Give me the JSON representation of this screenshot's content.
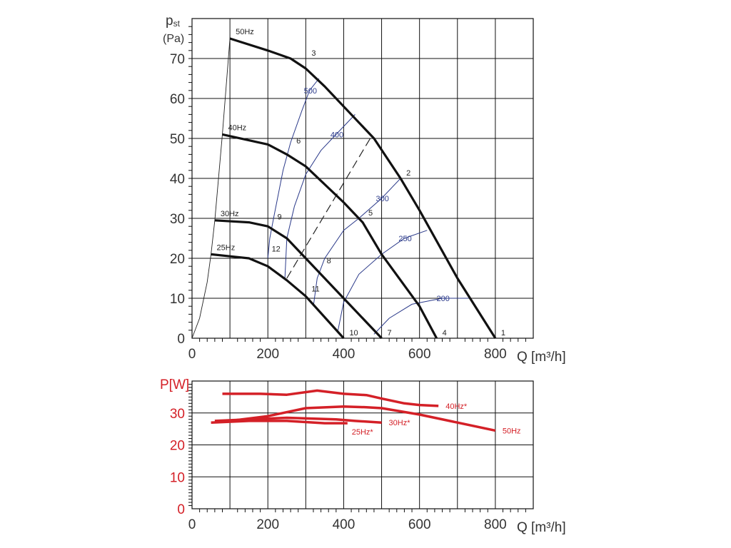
{
  "chart_data": [
    {
      "type": "line",
      "title": "",
      "ylabel_main": "p",
      "ylabel_sub": "st",
      "ylabel_unit": "(Pa)",
      "xlabel": "Q [m³/h]",
      "xlim": [
        0,
        900
      ],
      "ylim": [
        0,
        80
      ],
      "xticks": [
        0,
        200,
        400,
        600,
        800
      ],
      "yticks": [
        0,
        10,
        20,
        30,
        40,
        50,
        60,
        70
      ],
      "grid": true,
      "series": [
        {
          "name": "50Hz",
          "points": [
            [
              100,
              75
            ],
            [
              200,
              72
            ],
            [
              260,
              70
            ],
            [
              300,
              67.5
            ],
            [
              350,
              63
            ],
            [
              400,
              58
            ],
            [
              480,
              50
            ],
            [
              550,
              40
            ],
            [
              600,
              32
            ],
            [
              700,
              15
            ],
            [
              800,
              0
            ]
          ]
        },
        {
          "name": "40Hz",
          "points": [
            [
              80,
              51
            ],
            [
              200,
              48.5
            ],
            [
              250,
              46
            ],
            [
              300,
              43
            ],
            [
              400,
              34
            ],
            [
              450,
              29
            ],
            [
              500,
              21
            ],
            [
              600,
              8
            ],
            [
              645,
              0
            ]
          ]
        },
        {
          "name": "30Hz",
          "points": [
            [
              60,
              29.5
            ],
            [
              150,
              29
            ],
            [
              200,
              28
            ],
            [
              250,
              25
            ],
            [
              300,
              20
            ],
            [
              400,
              10
            ],
            [
              500,
              0
            ]
          ]
        },
        {
          "name": "25Hz",
          "points": [
            [
              50,
              21
            ],
            [
              100,
              20.5
            ],
            [
              150,
              20
            ],
            [
              200,
              18
            ],
            [
              250,
              14.5
            ],
            [
              300,
              10.5
            ],
            [
              400,
              0
            ]
          ]
        }
      ],
      "system_curve": [
        [
          0,
          0
        ],
        [
          20,
          5
        ],
        [
          40,
          14
        ],
        [
          50,
          21
        ],
        [
          60,
          29.5
        ],
        [
          80,
          51
        ],
        [
          100,
          75
        ]
      ],
      "dashed_line": [
        [
          250,
          15
        ],
        [
          470,
          50
        ]
      ],
      "iso_lines": [
        {
          "name": "500",
          "points": [
            [
              200,
              20
            ],
            [
              205,
              25
            ],
            [
              215,
              30
            ],
            [
              240,
              42
            ],
            [
              260,
              49
            ],
            [
              290,
              57
            ],
            [
              310,
              62
            ],
            [
              335,
              65
            ]
          ]
        },
        {
          "name": "400",
          "points": [
            [
              245,
              15
            ],
            [
              250,
              25
            ],
            [
              270,
              33
            ],
            [
              300,
              41
            ],
            [
              340,
              47
            ],
            [
              380,
              51
            ],
            [
              430,
              56
            ]
          ]
        },
        {
          "name": "300",
          "points": [
            [
              320,
              8
            ],
            [
              330,
              15
            ],
            [
              350,
              20
            ],
            [
              400,
              27
            ],
            [
              440,
              30
            ],
            [
              500,
              35
            ],
            [
              550,
              40
            ]
          ]
        },
        {
          "name": "250",
          "points": [
            [
              385,
              2
            ],
            [
              400,
              9
            ],
            [
              440,
              16
            ],
            [
              500,
              21
            ],
            [
              560,
              25
            ],
            [
              620,
              27
            ]
          ]
        },
        {
          "name": "200",
          "points": [
            [
              480,
              1
            ],
            [
              520,
              5
            ],
            [
              580,
              8.5
            ],
            [
              660,
              10
            ],
            [
              730,
              10
            ]
          ]
        }
      ],
      "point_labels": [
        {
          "label": "1",
          "x": 800,
          "y": 0
        },
        {
          "label": "2",
          "x": 550,
          "y": 40
        },
        {
          "label": "3",
          "x": 300,
          "y": 70
        },
        {
          "label": "4",
          "x": 645,
          "y": 0
        },
        {
          "label": "5",
          "x": 450,
          "y": 30
        },
        {
          "label": "6",
          "x": 260,
          "y": 48
        },
        {
          "label": "7",
          "x": 500,
          "y": 0
        },
        {
          "label": "8",
          "x": 340,
          "y": 18
        },
        {
          "label": "9",
          "x": 210,
          "y": 29
        },
        {
          "label": "10",
          "x": 400,
          "y": 0
        },
        {
          "label": "11",
          "x": 300,
          "y": 11
        },
        {
          "label": "12",
          "x": 195,
          "y": 21
        }
      ]
    },
    {
      "type": "line",
      "title": "",
      "ylabel": "P[W]",
      "xlabel": "Q [m³/h]",
      "xlim": [
        0,
        900
      ],
      "ylim": [
        0,
        40
      ],
      "xticks": [
        0,
        200,
        400,
        600,
        800
      ],
      "yticks": [
        0,
        10,
        20,
        30
      ],
      "grid": true,
      "color": "#d42027",
      "series": [
        {
          "name": "40Hz*",
          "points": [
            [
              80,
              36
            ],
            [
              180,
              36
            ],
            [
              250,
              35.7
            ],
            [
              330,
              37
            ],
            [
              400,
              36
            ],
            [
              460,
              35.6
            ],
            [
              500,
              34.5
            ],
            [
              560,
              33
            ],
            [
              600,
              32.5
            ],
            [
              650,
              32.2
            ]
          ]
        },
        {
          "name": "50Hz",
          "points": [
            [
              100,
              27.5
            ],
            [
              200,
              29
            ],
            [
              300,
              31.5
            ],
            [
              400,
              32
            ],
            [
              460,
              31.8
            ],
            [
              500,
              31.5
            ],
            [
              600,
              29.5
            ],
            [
              700,
              27
            ],
            [
              800,
              24.5
            ]
          ]
        },
        {
          "name": "30Hz*",
          "points": [
            [
              60,
              27.5
            ],
            [
              150,
              28
            ],
            [
              250,
              28.5
            ],
            [
              380,
              28
            ],
            [
              430,
              27.5
            ],
            [
              500,
              27
            ]
          ]
        },
        {
          "name": "25Hz*",
          "points": [
            [
              50,
              27
            ],
            [
              150,
              27.5
            ],
            [
              250,
              27.5
            ],
            [
              350,
              26.8
            ],
            [
              410,
              26.8
            ]
          ]
        }
      ]
    }
  ]
}
